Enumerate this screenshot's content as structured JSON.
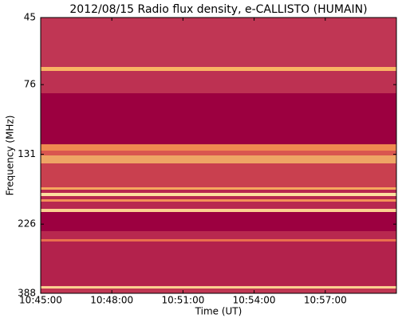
{
  "chart_data": {
    "type": "spectrogram",
    "title": "2012/08/15  Radio flux density, e-CALLISTO (HUMAIN)",
    "x_label": "Time (UT)",
    "y_label": "Frequency (MHz)",
    "xlim": [
      "10:45:00",
      "11:00:00"
    ],
    "xticks": [
      "10:45:00",
      "10:48:00",
      "10:51:00",
      "10:54:00",
      "10:57:00"
    ],
    "ylim": [
      388,
      45
    ],
    "yticks": [
      45,
      76,
      131,
      226,
      388
    ],
    "yscale": "log"
  }
}
